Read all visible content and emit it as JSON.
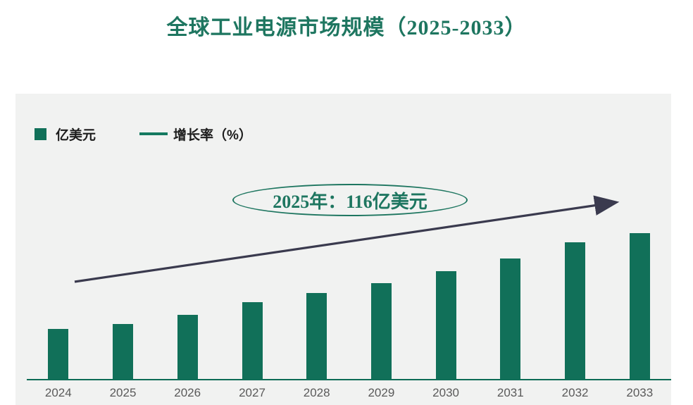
{
  "header": {
    "title": "全球工业电源市场规模（2025-2033）"
  },
  "legend": {
    "bar_label": "亿美元",
    "line_label": "增长率（%）"
  },
  "annotation": {
    "callout": "2025年：116亿美元"
  },
  "colors": {
    "bar": "#117059",
    "title": "#1e7660",
    "axis_line": "#0c6b55",
    "legend_line": "#157a60",
    "arrow": "#3a3a4e",
    "x_label": "#5a5a5a",
    "legend_text": "#1c1c1c",
    "annotation": "#1e7660",
    "panel_background": "#f1f2f1",
    "page_background": "#ffffff"
  },
  "chart_data": {
    "type": "bar",
    "title": "全球工业电源市场规模（2025-2033）",
    "categories": [
      "2024",
      "2025",
      "2026",
      "2027",
      "2028",
      "2029",
      "2030",
      "2031",
      "2032",
      "2033"
    ],
    "series": [
      {
        "name": "亿美元",
        "type": "bar",
        "values": [
          105,
          116,
          134,
          161,
          180,
          200,
          225,
          252,
          285,
          305
        ]
      },
      {
        "name": "增长率（%）",
        "type": "line",
        "rendered_as": "straight upward trend arrow without labeled values"
      }
    ],
    "annotations": [
      "2025年：116亿美元"
    ],
    "xlabel": "",
    "ylabel": "",
    "ylim": [
      0,
      320
    ],
    "grid": false,
    "legend_position": "top-left"
  }
}
